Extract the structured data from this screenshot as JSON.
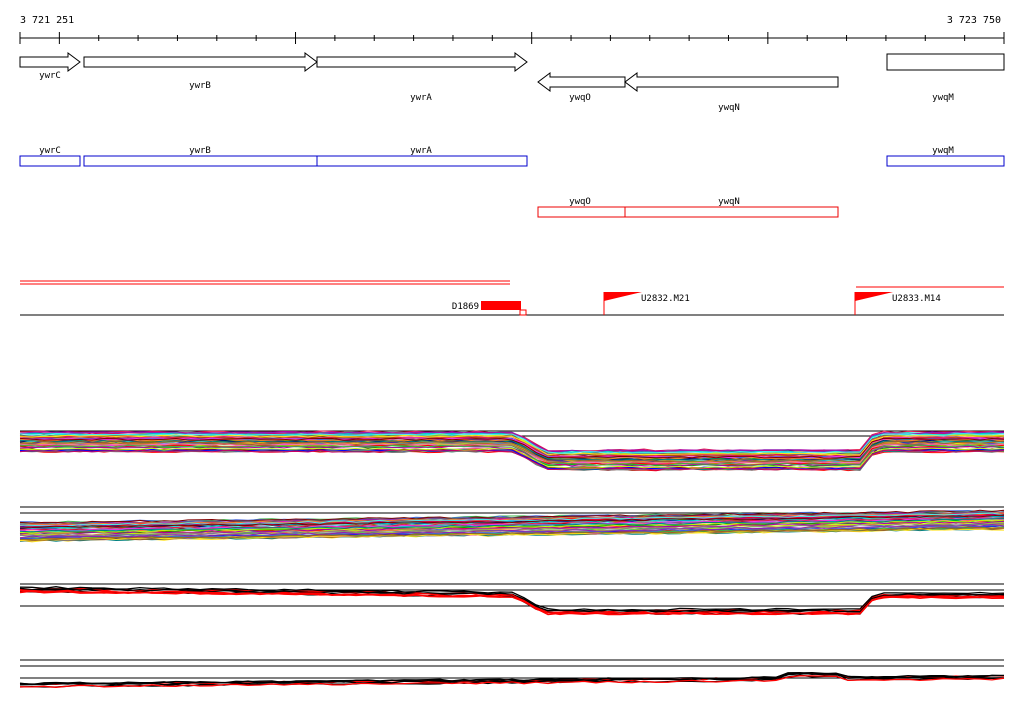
{
  "coords": {
    "start": "3 721 251",
    "end": "3 723 750"
  },
  "genes": [
    {
      "name": "ywrC",
      "strand": "+",
      "track": "blue"
    },
    {
      "name": "ywrB",
      "strand": "+",
      "track": "blue"
    },
    {
      "name": "ywrA",
      "strand": "+",
      "track": "blue"
    },
    {
      "name": "ywqO",
      "strand": "-",
      "track": "red"
    },
    {
      "name": "ywqN",
      "strand": "-",
      "track": "red"
    },
    {
      "name": "ywqM",
      "strand": "+",
      "track": "blue"
    }
  ],
  "features": [
    {
      "label": "D1869"
    },
    {
      "label": "U2832.M21"
    },
    {
      "label": "U2833.M14"
    }
  ],
  "colors": {
    "axis": "#000000",
    "plus_track": "#0000cc",
    "minus_track": "#ee0000",
    "feature": "#ff0000"
  }
}
